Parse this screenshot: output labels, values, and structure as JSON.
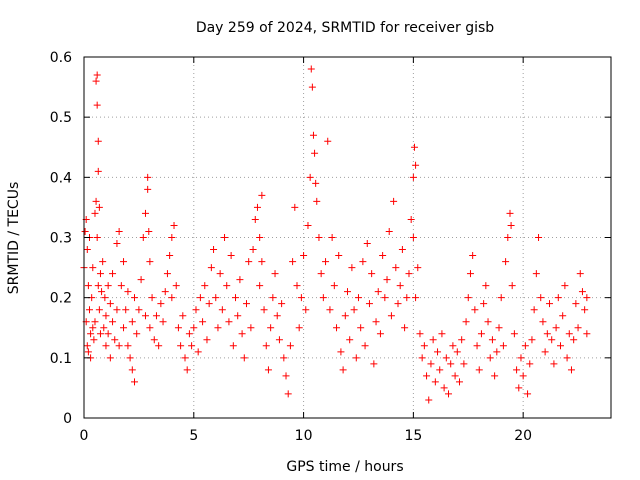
{
  "chart_data": {
    "type": "scatter",
    "title": "Day 259 of 2024, SRMTID for receiver gisb",
    "xlabel": "GPS time / hours",
    "ylabel": "SRMTID / TECUs",
    "xlim": [
      0,
      24
    ],
    "ylim": [
      0,
      0.6
    ],
    "x_ticks": [
      0,
      5,
      10,
      15,
      20
    ],
    "x_tick_labels": [
      "0",
      "5",
      "10",
      "15",
      "20"
    ],
    "y_ticks": [
      0,
      0.1,
      0.2,
      0.3,
      0.4,
      0.5,
      0.6
    ],
    "y_tick_labels": [
      "0",
      "0.1",
      "0.2",
      "0.3",
      "0.4",
      "0.5",
      "0.6"
    ],
    "grid": true,
    "marker": "+",
    "colors": {
      "series": "#ff0000",
      "grid": "#a0a0a0",
      "axes": "#000000"
    },
    "series": [
      {
        "name": "SRMTID",
        "points": [
          [
            0.0,
            0.25
          ],
          [
            0.05,
            0.31
          ],
          [
            0.1,
            0.33
          ],
          [
            0.1,
            0.16
          ],
          [
            0.15,
            0.28
          ],
          [
            0.15,
            0.12
          ],
          [
            0.2,
            0.22
          ],
          [
            0.2,
            0.11
          ],
          [
            0.25,
            0.3
          ],
          [
            0.25,
            0.18
          ],
          [
            0.3,
            0.14
          ],
          [
            0.3,
            0.1
          ],
          [
            0.35,
            0.2
          ],
          [
            0.4,
            0.15
          ],
          [
            0.4,
            0.25
          ],
          [
            0.45,
            0.13
          ],
          [
            0.5,
            0.34
          ],
          [
            0.5,
            0.16
          ],
          [
            0.55,
            0.56
          ],
          [
            0.55,
            0.36
          ],
          [
            0.6,
            0.57
          ],
          [
            0.6,
            0.52
          ],
          [
            0.6,
            0.3
          ],
          [
            0.65,
            0.46
          ],
          [
            0.65,
            0.41
          ],
          [
            0.65,
            0.22
          ],
          [
            0.7,
            0.35
          ],
          [
            0.7,
            0.18
          ],
          [
            0.75,
            0.24
          ],
          [
            0.75,
            0.14
          ],
          [
            0.8,
            0.21
          ],
          [
            0.85,
            0.26
          ],
          [
            0.9,
            0.15
          ],
          [
            0.95,
            0.2
          ],
          [
            1.0,
            0.12
          ],
          [
            1.0,
            0.17
          ],
          [
            1.1,
            0.22
          ],
          [
            1.1,
            0.14
          ],
          [
            1.2,
            0.19
          ],
          [
            1.2,
            0.1
          ],
          [
            1.3,
            0.24
          ],
          [
            1.3,
            0.16
          ],
          [
            1.4,
            0.13
          ],
          [
            1.5,
            0.29
          ],
          [
            1.5,
            0.18
          ],
          [
            1.6,
            0.31
          ],
          [
            1.6,
            0.12
          ],
          [
            1.7,
            0.22
          ],
          [
            1.8,
            0.15
          ],
          [
            1.8,
            0.26
          ],
          [
            1.9,
            0.18
          ],
          [
            2.0,
            0.12
          ],
          [
            2.0,
            0.21
          ],
          [
            2.1,
            0.1
          ],
          [
            2.2,
            0.16
          ],
          [
            2.2,
            0.08
          ],
          [
            2.3,
            0.06
          ],
          [
            2.3,
            0.2
          ],
          [
            2.4,
            0.14
          ],
          [
            2.5,
            0.18
          ],
          [
            2.6,
            0.23
          ],
          [
            2.7,
            0.3
          ],
          [
            2.8,
            0.34
          ],
          [
            2.8,
            0.17
          ],
          [
            2.9,
            0.4
          ],
          [
            2.9,
            0.38
          ],
          [
            2.95,
            0.31
          ],
          [
            3.0,
            0.26
          ],
          [
            3.0,
            0.15
          ],
          [
            3.1,
            0.2
          ],
          [
            3.2,
            0.13
          ],
          [
            3.3,
            0.17
          ],
          [
            3.4,
            0.12
          ],
          [
            3.5,
            0.19
          ],
          [
            3.6,
            0.16
          ],
          [
            3.7,
            0.21
          ],
          [
            3.8,
            0.24
          ],
          [
            3.9,
            0.27
          ],
          [
            4.0,
            0.3
          ],
          [
            4.0,
            0.2
          ],
          [
            4.1,
            0.32
          ],
          [
            4.2,
            0.22
          ],
          [
            4.3,
            0.15
          ],
          [
            4.4,
            0.12
          ],
          [
            4.5,
            0.17
          ],
          [
            4.6,
            0.1
          ],
          [
            4.7,
            0.08
          ],
          [
            4.8,
            0.14
          ],
          [
            4.9,
            0.12
          ],
          [
            5.0,
            0.15
          ],
          [
            5.1,
            0.18
          ],
          [
            5.2,
            0.11
          ],
          [
            5.3,
            0.2
          ],
          [
            5.4,
            0.16
          ],
          [
            5.5,
            0.22
          ],
          [
            5.6,
            0.13
          ],
          [
            5.7,
            0.19
          ],
          [
            5.8,
            0.25
          ],
          [
            5.9,
            0.28
          ],
          [
            6.0,
            0.2
          ],
          [
            6.1,
            0.15
          ],
          [
            6.2,
            0.24
          ],
          [
            6.3,
            0.18
          ],
          [
            6.4,
            0.3
          ],
          [
            6.5,
            0.22
          ],
          [
            6.6,
            0.16
          ],
          [
            6.7,
            0.27
          ],
          [
            6.8,
            0.12
          ],
          [
            6.9,
            0.2
          ],
          [
            7.0,
            0.17
          ],
          [
            7.1,
            0.23
          ],
          [
            7.2,
            0.14
          ],
          [
            7.3,
            0.1
          ],
          [
            7.4,
            0.19
          ],
          [
            7.5,
            0.26
          ],
          [
            7.6,
            0.15
          ],
          [
            7.7,
            0.28
          ],
          [
            7.8,
            0.33
          ],
          [
            7.9,
            0.35
          ],
          [
            8.0,
            0.3
          ],
          [
            8.0,
            0.22
          ],
          [
            8.1,
            0.37
          ],
          [
            8.1,
            0.26
          ],
          [
            8.2,
            0.18
          ],
          [
            8.3,
            0.12
          ],
          [
            8.4,
            0.08
          ],
          [
            8.5,
            0.15
          ],
          [
            8.6,
            0.2
          ],
          [
            8.7,
            0.24
          ],
          [
            8.8,
            0.17
          ],
          [
            8.9,
            0.13
          ],
          [
            9.0,
            0.19
          ],
          [
            9.1,
            0.1
          ],
          [
            9.2,
            0.07
          ],
          [
            9.3,
            0.04
          ],
          [
            9.4,
            0.12
          ],
          [
            9.5,
            0.26
          ],
          [
            9.6,
            0.35
          ],
          [
            9.7,
            0.22
          ],
          [
            9.8,
            0.15
          ],
          [
            9.9,
            0.2
          ],
          [
            10.0,
            0.27
          ],
          [
            10.1,
            0.18
          ],
          [
            10.2,
            0.32
          ],
          [
            10.3,
            0.4
          ],
          [
            10.35,
            0.58
          ],
          [
            10.4,
            0.55
          ],
          [
            10.45,
            0.47
          ],
          [
            10.5,
            0.44
          ],
          [
            10.55,
            0.39
          ],
          [
            10.6,
            0.36
          ],
          [
            10.7,
            0.3
          ],
          [
            10.8,
            0.24
          ],
          [
            10.9,
            0.2
          ],
          [
            11.0,
            0.26
          ],
          [
            11.1,
            0.46
          ],
          [
            11.2,
            0.18
          ],
          [
            11.3,
            0.3
          ],
          [
            11.4,
            0.22
          ],
          [
            11.5,
            0.15
          ],
          [
            11.6,
            0.27
          ],
          [
            11.7,
            0.11
          ],
          [
            11.8,
            0.08
          ],
          [
            11.9,
            0.17
          ],
          [
            12.0,
            0.21
          ],
          [
            12.1,
            0.13
          ],
          [
            12.2,
            0.25
          ],
          [
            12.3,
            0.18
          ],
          [
            12.4,
            0.1
          ],
          [
            12.5,
            0.2
          ],
          [
            12.6,
            0.15
          ],
          [
            12.7,
            0.26
          ],
          [
            12.8,
            0.12
          ],
          [
            12.9,
            0.29
          ],
          [
            13.0,
            0.19
          ],
          [
            13.1,
            0.24
          ],
          [
            13.2,
            0.09
          ],
          [
            13.3,
            0.16
          ],
          [
            13.4,
            0.21
          ],
          [
            13.5,
            0.14
          ],
          [
            13.6,
            0.27
          ],
          [
            13.7,
            0.2
          ],
          [
            13.8,
            0.23
          ],
          [
            13.9,
            0.31
          ],
          [
            14.0,
            0.17
          ],
          [
            14.1,
            0.36
          ],
          [
            14.2,
            0.25
          ],
          [
            14.3,
            0.19
          ],
          [
            14.4,
            0.22
          ],
          [
            14.5,
            0.28
          ],
          [
            14.6,
            0.15
          ],
          [
            14.7,
            0.2
          ],
          [
            14.8,
            0.24
          ],
          [
            14.9,
            0.33
          ],
          [
            15.0,
            0.4
          ],
          [
            15.0,
            0.3
          ],
          [
            15.05,
            0.45
          ],
          [
            15.1,
            0.42
          ],
          [
            15.1,
            0.2
          ],
          [
            15.2,
            0.25
          ],
          [
            15.3,
            0.14
          ],
          [
            15.4,
            0.1
          ],
          [
            15.5,
            0.12
          ],
          [
            15.6,
            0.07
          ],
          [
            15.7,
            0.03
          ],
          [
            15.8,
            0.09
          ],
          [
            15.9,
            0.13
          ],
          [
            16.0,
            0.06
          ],
          [
            16.1,
            0.11
          ],
          [
            16.2,
            0.08
          ],
          [
            16.3,
            0.14
          ],
          [
            16.4,
            0.05
          ],
          [
            16.5,
            0.1
          ],
          [
            16.6,
            0.04
          ],
          [
            16.7,
            0.09
          ],
          [
            16.8,
            0.12
          ],
          [
            16.9,
            0.07
          ],
          [
            17.0,
            0.11
          ],
          [
            17.1,
            0.06
          ],
          [
            17.2,
            0.13
          ],
          [
            17.3,
            0.09
          ],
          [
            17.4,
            0.16
          ],
          [
            17.5,
            0.2
          ],
          [
            17.6,
            0.24
          ],
          [
            17.7,
            0.27
          ],
          [
            17.8,
            0.18
          ],
          [
            17.9,
            0.12
          ],
          [
            18.0,
            0.08
          ],
          [
            18.1,
            0.14
          ],
          [
            18.2,
            0.19
          ],
          [
            18.3,
            0.22
          ],
          [
            18.4,
            0.16
          ],
          [
            18.5,
            0.1
          ],
          [
            18.6,
            0.13
          ],
          [
            18.7,
            0.07
          ],
          [
            18.8,
            0.11
          ],
          [
            18.9,
            0.15
          ],
          [
            19.0,
            0.2
          ],
          [
            19.1,
            0.12
          ],
          [
            19.2,
            0.26
          ],
          [
            19.3,
            0.3
          ],
          [
            19.4,
            0.34
          ],
          [
            19.45,
            0.32
          ],
          [
            19.5,
            0.22
          ],
          [
            19.6,
            0.14
          ],
          [
            19.7,
            0.08
          ],
          [
            19.8,
            0.05
          ],
          [
            19.9,
            0.1
          ],
          [
            20.0,
            0.07
          ],
          [
            20.1,
            0.12
          ],
          [
            20.2,
            0.04
          ],
          [
            20.3,
            0.09
          ],
          [
            20.4,
            0.13
          ],
          [
            20.5,
            0.18
          ],
          [
            20.6,
            0.24
          ],
          [
            20.7,
            0.3
          ],
          [
            20.8,
            0.2
          ],
          [
            20.9,
            0.16
          ],
          [
            21.0,
            0.11
          ],
          [
            21.1,
            0.14
          ],
          [
            21.2,
            0.19
          ],
          [
            21.3,
            0.13
          ],
          [
            21.4,
            0.09
          ],
          [
            21.5,
            0.15
          ],
          [
            21.6,
            0.2
          ],
          [
            21.7,
            0.12
          ],
          [
            21.8,
            0.17
          ],
          [
            21.9,
            0.22
          ],
          [
            22.0,
            0.1
          ],
          [
            22.1,
            0.14
          ],
          [
            22.2,
            0.08
          ],
          [
            22.3,
            0.13
          ],
          [
            22.4,
            0.19
          ],
          [
            22.5,
            0.15
          ],
          [
            22.6,
            0.24
          ],
          [
            22.7,
            0.21
          ],
          [
            22.8,
            0.18
          ],
          [
            22.9,
            0.14
          ],
          [
            22.9,
            0.2
          ]
        ]
      }
    ]
  }
}
